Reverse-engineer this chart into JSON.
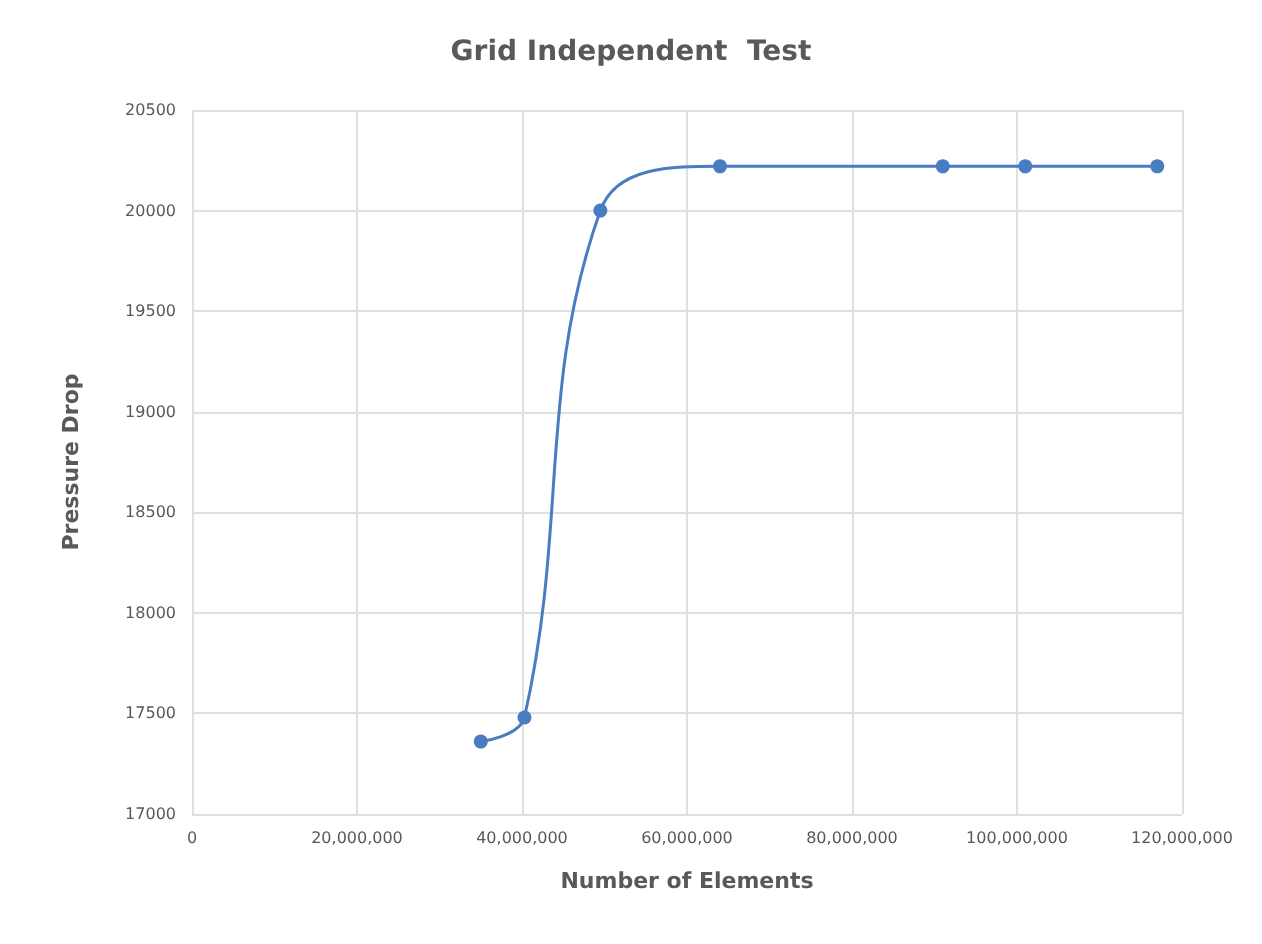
{
  "chart_data": {
    "type": "line",
    "title": "Grid Independent  Test",
    "xlabel": "Number of Elements",
    "ylabel": "Pressure Drop",
    "x": [
      35000000,
      40300000,
      49500000,
      64000000,
      91000000,
      101000000,
      117000000
    ],
    "series": [
      {
        "color": "#4a7cc0",
        "values": [
          17360,
          17480,
          20000,
          20220,
          20220,
          20220,
          20220
        ]
      }
    ],
    "xlim": [
      0,
      120000000
    ],
    "xticks": [
      {
        "value": 0,
        "label": "0"
      },
      {
        "value": 20000000,
        "label": "20,000,000"
      },
      {
        "value": 40000000,
        "label": "40,000,000"
      },
      {
        "value": 60000000,
        "label": "60,000,000"
      },
      {
        "value": 80000000,
        "label": "80,000,000"
      },
      {
        "value": 100000000,
        "label": "100,000,000"
      },
      {
        "value": 120000000,
        "label": "120,000,000"
      }
    ],
    "ylim": [
      17000,
      20500
    ],
    "yticks": [
      17000,
      17500,
      18000,
      18500,
      19000,
      19500,
      20000,
      20500
    ],
    "grid": true,
    "marker": "circle",
    "line_style": "solid"
  }
}
